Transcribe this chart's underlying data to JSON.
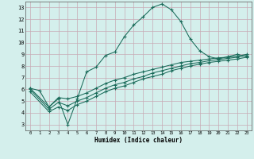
{
  "xlabel": "Humidex (Indice chaleur)",
  "xlim": [
    -0.5,
    23.5
  ],
  "ylim": [
    2.5,
    13.5
  ],
  "yticks": [
    3,
    4,
    5,
    6,
    7,
    8,
    9,
    10,
    11,
    12,
    13
  ],
  "xticks": [
    0,
    1,
    2,
    3,
    4,
    5,
    6,
    7,
    8,
    9,
    10,
    11,
    12,
    13,
    14,
    15,
    16,
    17,
    18,
    19,
    20,
    21,
    22,
    23
  ],
  "bg_color": "#d4efec",
  "grid_color": "#c8aab4",
  "line_color": "#1a6b5a",
  "curve1_x": [
    0,
    1,
    2,
    3,
    4,
    5,
    6,
    7,
    8,
    9,
    10,
    11,
    12,
    13,
    14,
    15,
    16,
    17,
    18,
    19,
    20,
    21,
    22,
    23
  ],
  "curve1_y": [
    6.1,
    5.9,
    4.5,
    5.2,
    3.0,
    5.2,
    7.5,
    7.9,
    8.9,
    9.2,
    10.5,
    11.5,
    12.2,
    13.0,
    13.3,
    12.8,
    11.8,
    10.3,
    9.3,
    8.8,
    8.6,
    8.8,
    9.0,
    8.8
  ],
  "curve2_x": [
    0,
    2,
    3,
    4,
    5,
    6,
    7,
    8,
    9,
    10,
    11,
    12,
    13,
    14,
    15,
    16,
    17,
    18,
    19,
    20,
    21,
    22,
    23
  ],
  "curve2_y": [
    6.1,
    4.5,
    5.3,
    5.2,
    5.4,
    5.7,
    6.1,
    6.5,
    6.8,
    7.0,
    7.3,
    7.5,
    7.7,
    7.9,
    8.1,
    8.3,
    8.4,
    8.5,
    8.6,
    8.7,
    8.75,
    8.85,
    9.0
  ],
  "curve3_x": [
    0,
    2,
    3,
    4,
    5,
    6,
    7,
    8,
    9,
    10,
    11,
    12,
    13,
    14,
    15,
    16,
    17,
    18,
    19,
    20,
    21,
    22,
    23
  ],
  "curve3_y": [
    6.0,
    4.3,
    4.9,
    4.6,
    5.0,
    5.3,
    5.7,
    6.1,
    6.4,
    6.6,
    6.9,
    7.1,
    7.4,
    7.6,
    7.8,
    8.0,
    8.2,
    8.3,
    8.45,
    8.55,
    8.65,
    8.75,
    8.9
  ],
  "curve4_x": [
    0,
    2,
    3,
    4,
    5,
    6,
    7,
    8,
    9,
    10,
    11,
    12,
    13,
    14,
    15,
    16,
    17,
    18,
    19,
    20,
    21,
    22,
    23
  ],
  "curve4_y": [
    5.8,
    4.1,
    4.5,
    4.2,
    4.7,
    5.0,
    5.4,
    5.8,
    6.1,
    6.3,
    6.6,
    6.9,
    7.1,
    7.3,
    7.6,
    7.8,
    8.0,
    8.15,
    8.3,
    8.4,
    8.5,
    8.6,
    8.75
  ]
}
